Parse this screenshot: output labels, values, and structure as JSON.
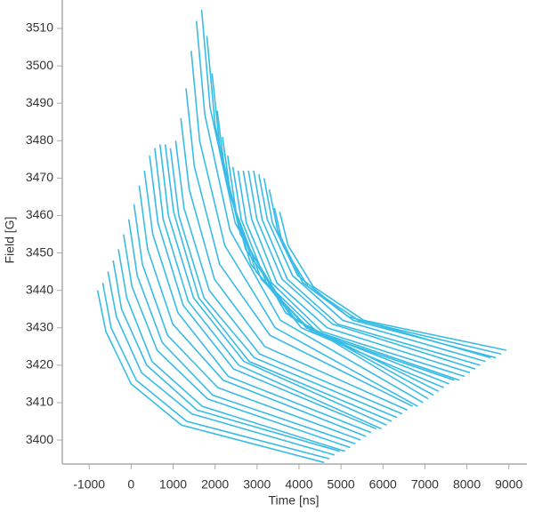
{
  "chart_data": {
    "type": "line",
    "x_label": "Time [ns]",
    "y_label": "Field [G]",
    "color": "#38bce6",
    "xlim": [
      -1640,
      9430
    ],
    "ylim": [
      3393.6,
      3517.6
    ],
    "xticks": [
      -1000,
      0,
      1000,
      2000,
      3000,
      4000,
      5000,
      6000,
      7000,
      8000,
      9000
    ],
    "yticks": [
      3400,
      3410,
      3420,
      3430,
      3440,
      3450,
      3460,
      3470,
      3480,
      3490,
      3500,
      3510
    ],
    "series": [
      {
        "x": [
          -800,
          -600,
          0,
          1200,
          4600
        ],
        "values": [
          3440,
          3429,
          3415,
          3404,
          3394
        ]
      },
      {
        "x": [
          -676,
          -476,
          124,
          1324,
          4724
        ],
        "values": [
          3442,
          3430,
          3416,
          3405,
          3395
        ]
      },
      {
        "x": [
          -552,
          -352,
          248,
          1448,
          4848
        ],
        "values": [
          3445,
          3433,
          3418,
          3407,
          3396
        ]
      },
      {
        "x": [
          -428,
          -228,
          372,
          1572,
          4972
        ],
        "values": [
          3448,
          3435,
          3420,
          3408,
          3397
        ]
      },
      {
        "x": [
          -304,
          -104,
          496,
          1696,
          5096
        ],
        "values": [
          3451,
          3438,
          3421,
          3409,
          3397
        ]
      },
      {
        "x": [
          -180,
          20,
          620,
          1820,
          5220
        ],
        "values": [
          3455,
          3441,
          3424,
          3411,
          3398
        ]
      },
      {
        "x": [
          -56,
          144,
          744,
          1944,
          5344
        ],
        "values": [
          3459,
          3444,
          3426,
          3412,
          3399
        ]
      },
      {
        "x": [
          68,
          268,
          868,
          2068,
          5468
        ],
        "values": [
          3463,
          3447,
          3428,
          3414,
          3400
        ]
      },
      {
        "x": [
          192,
          392,
          992,
          2192,
          5592
        ],
        "values": [
          3468,
          3451,
          3431,
          3416,
          3401
        ]
      },
      {
        "x": [
          316,
          516,
          1116,
          2316,
          5716
        ],
        "values": [
          3472,
          3455,
          3434,
          3417,
          3402
        ]
      },
      {
        "x": [
          440,
          640,
          1240,
          2440,
          5840
        ],
        "values": [
          3476,
          3458,
          3436,
          3419,
          3403
        ]
      },
      {
        "x": [
          564,
          764,
          1364,
          2564,
          5964
        ],
        "values": [
          3478,
          3459,
          3437,
          3420,
          3403
        ]
      },
      {
        "x": [
          688,
          888,
          1488,
          2688,
          6088
        ],
        "values": [
          3479,
          3460,
          3438,
          3421,
          3404
        ]
      },
      {
        "x": [
          812,
          1012,
          1612,
          2812,
          6212
        ],
        "values": [
          3479,
          3461,
          3438,
          3421,
          3405
        ]
      },
      {
        "x": [
          936,
          1136,
          1736,
          2936,
          6336
        ],
        "values": [
          3478,
          3460,
          3438,
          3422,
          3406
        ]
      },
      {
        "x": [
          1060,
          1260,
          1860,
          3060,
          6460
        ],
        "values": [
          3480,
          3462,
          3440,
          3423,
          3407
        ]
      },
      {
        "x": [
          1184,
          1384,
          1984,
          3184,
          6584
        ],
        "values": [
          3486,
          3467,
          3443,
          3425,
          3408
        ]
      },
      {
        "x": [
          1308,
          1508,
          2108,
          3308,
          6708
        ],
        "values": [
          3494,
          3473,
          3447,
          3428,
          3409
        ]
      },
      {
        "x": [
          1432,
          1632,
          2232,
          3432,
          6832
        ],
        "values": [
          3504,
          3480,
          3452,
          3430,
          3409
        ]
      },
      {
        "x": [
          1556,
          1756,
          2356,
          3556,
          6956
        ],
        "values": [
          3512,
          3487,
          3456,
          3432,
          3410
        ]
      },
      {
        "x": [
          1680,
          1880,
          2480,
          3680,
          7080
        ],
        "values": [
          3515,
          3489,
          3458,
          3434,
          3411
        ]
      },
      {
        "x": [
          1804,
          2004,
          2604,
          3804,
          7204
        ],
        "values": [
          3508,
          3484,
          3455,
          3433,
          3412
        ]
      },
      {
        "x": [
          1928,
          2128,
          2728,
          3928,
          7328
        ],
        "values": [
          3498,
          3477,
          3451,
          3432,
          3413
        ]
      },
      {
        "x": [
          2052,
          2252,
          2852,
          4052,
          7452
        ],
        "values": [
          3488,
          3470,
          3447,
          3430,
          3414
        ]
      },
      {
        "x": [
          2176,
          2376,
          2976,
          4176,
          7576
        ],
        "values": [
          3481,
          3465,
          3445,
          3430,
          3415
        ]
      },
      {
        "x": [
          2300,
          2500,
          3100,
          4300,
          7700
        ],
        "values": [
          3476,
          3461,
          3443,
          3429,
          3416
        ]
      },
      {
        "x": [
          2424,
          2624,
          3224,
          4424,
          7824
        ],
        "values": [
          3473,
          3459,
          3442,
          3429,
          3416
        ]
      },
      {
        "x": [
          2548,
          2748,
          3348,
          4548,
          7948
        ],
        "values": [
          3472,
          3458,
          3442,
          3429,
          3417
        ]
      },
      {
        "x": [
          2672,
          2872,
          3472,
          4672,
          8072
        ],
        "values": [
          3472,
          3459,
          3442,
          3430,
          3418
        ]
      },
      {
        "x": [
          2796,
          2996,
          3596,
          4796,
          8196
        ],
        "values": [
          3472,
          3459,
          3443,
          3431,
          3419
        ]
      },
      {
        "x": [
          2920,
          3120,
          3720,
          4920,
          8320
        ],
        "values": [
          3472,
          3459,
          3443,
          3431,
          3420
        ]
      },
      {
        "x": [
          3044,
          3244,
          3844,
          5044,
          8444
        ],
        "values": [
          3471,
          3459,
          3444,
          3432,
          3421
        ]
      },
      {
        "x": [
          3168,
          3368,
          3968,
          5168,
          8568
        ],
        "values": [
          3470,
          3458,
          3444,
          3433,
          3422
        ]
      },
      {
        "x": [
          3292,
          3492,
          4092,
          5292,
          8692
        ],
        "values": [
          3467,
          3456,
          3442,
          3432,
          3422
        ]
      },
      {
        "x": [
          3416,
          3616,
          4216,
          5416,
          8816
        ],
        "values": [
          3462,
          3452,
          3441,
          3432,
          3423
        ]
      },
      {
        "x": [
          3540,
          3740,
          4340,
          5540,
          8940
        ],
        "values": [
          3461,
          3452,
          3441,
          3432,
          3424
        ]
      }
    ]
  }
}
